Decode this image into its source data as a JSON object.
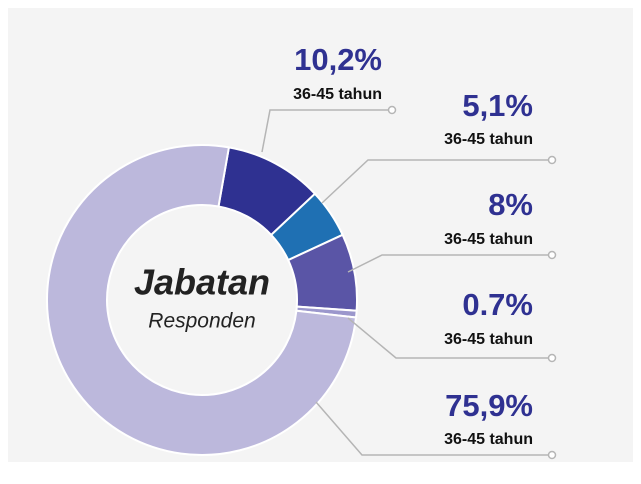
{
  "chart_data": {
    "type": "pie",
    "donut": true,
    "center_title": "Jabatan",
    "center_subtitle": "Responden",
    "categories": [
      "36-45 tahun",
      "36-45 tahun",
      "36-45 tahun",
      "36-45 tahun",
      "36-45 tahun"
    ],
    "values": [
      10.2,
      5.1,
      8,
      0.7,
      75.9
    ],
    "value_labels": [
      "10,2%",
      "5,1%",
      "8%",
      "0.7%",
      "75,9%"
    ],
    "colors": [
      "#2f3191",
      "#1f70b3",
      "#5a55a6",
      "#9b97cc",
      "#bcb8dc"
    ]
  }
}
